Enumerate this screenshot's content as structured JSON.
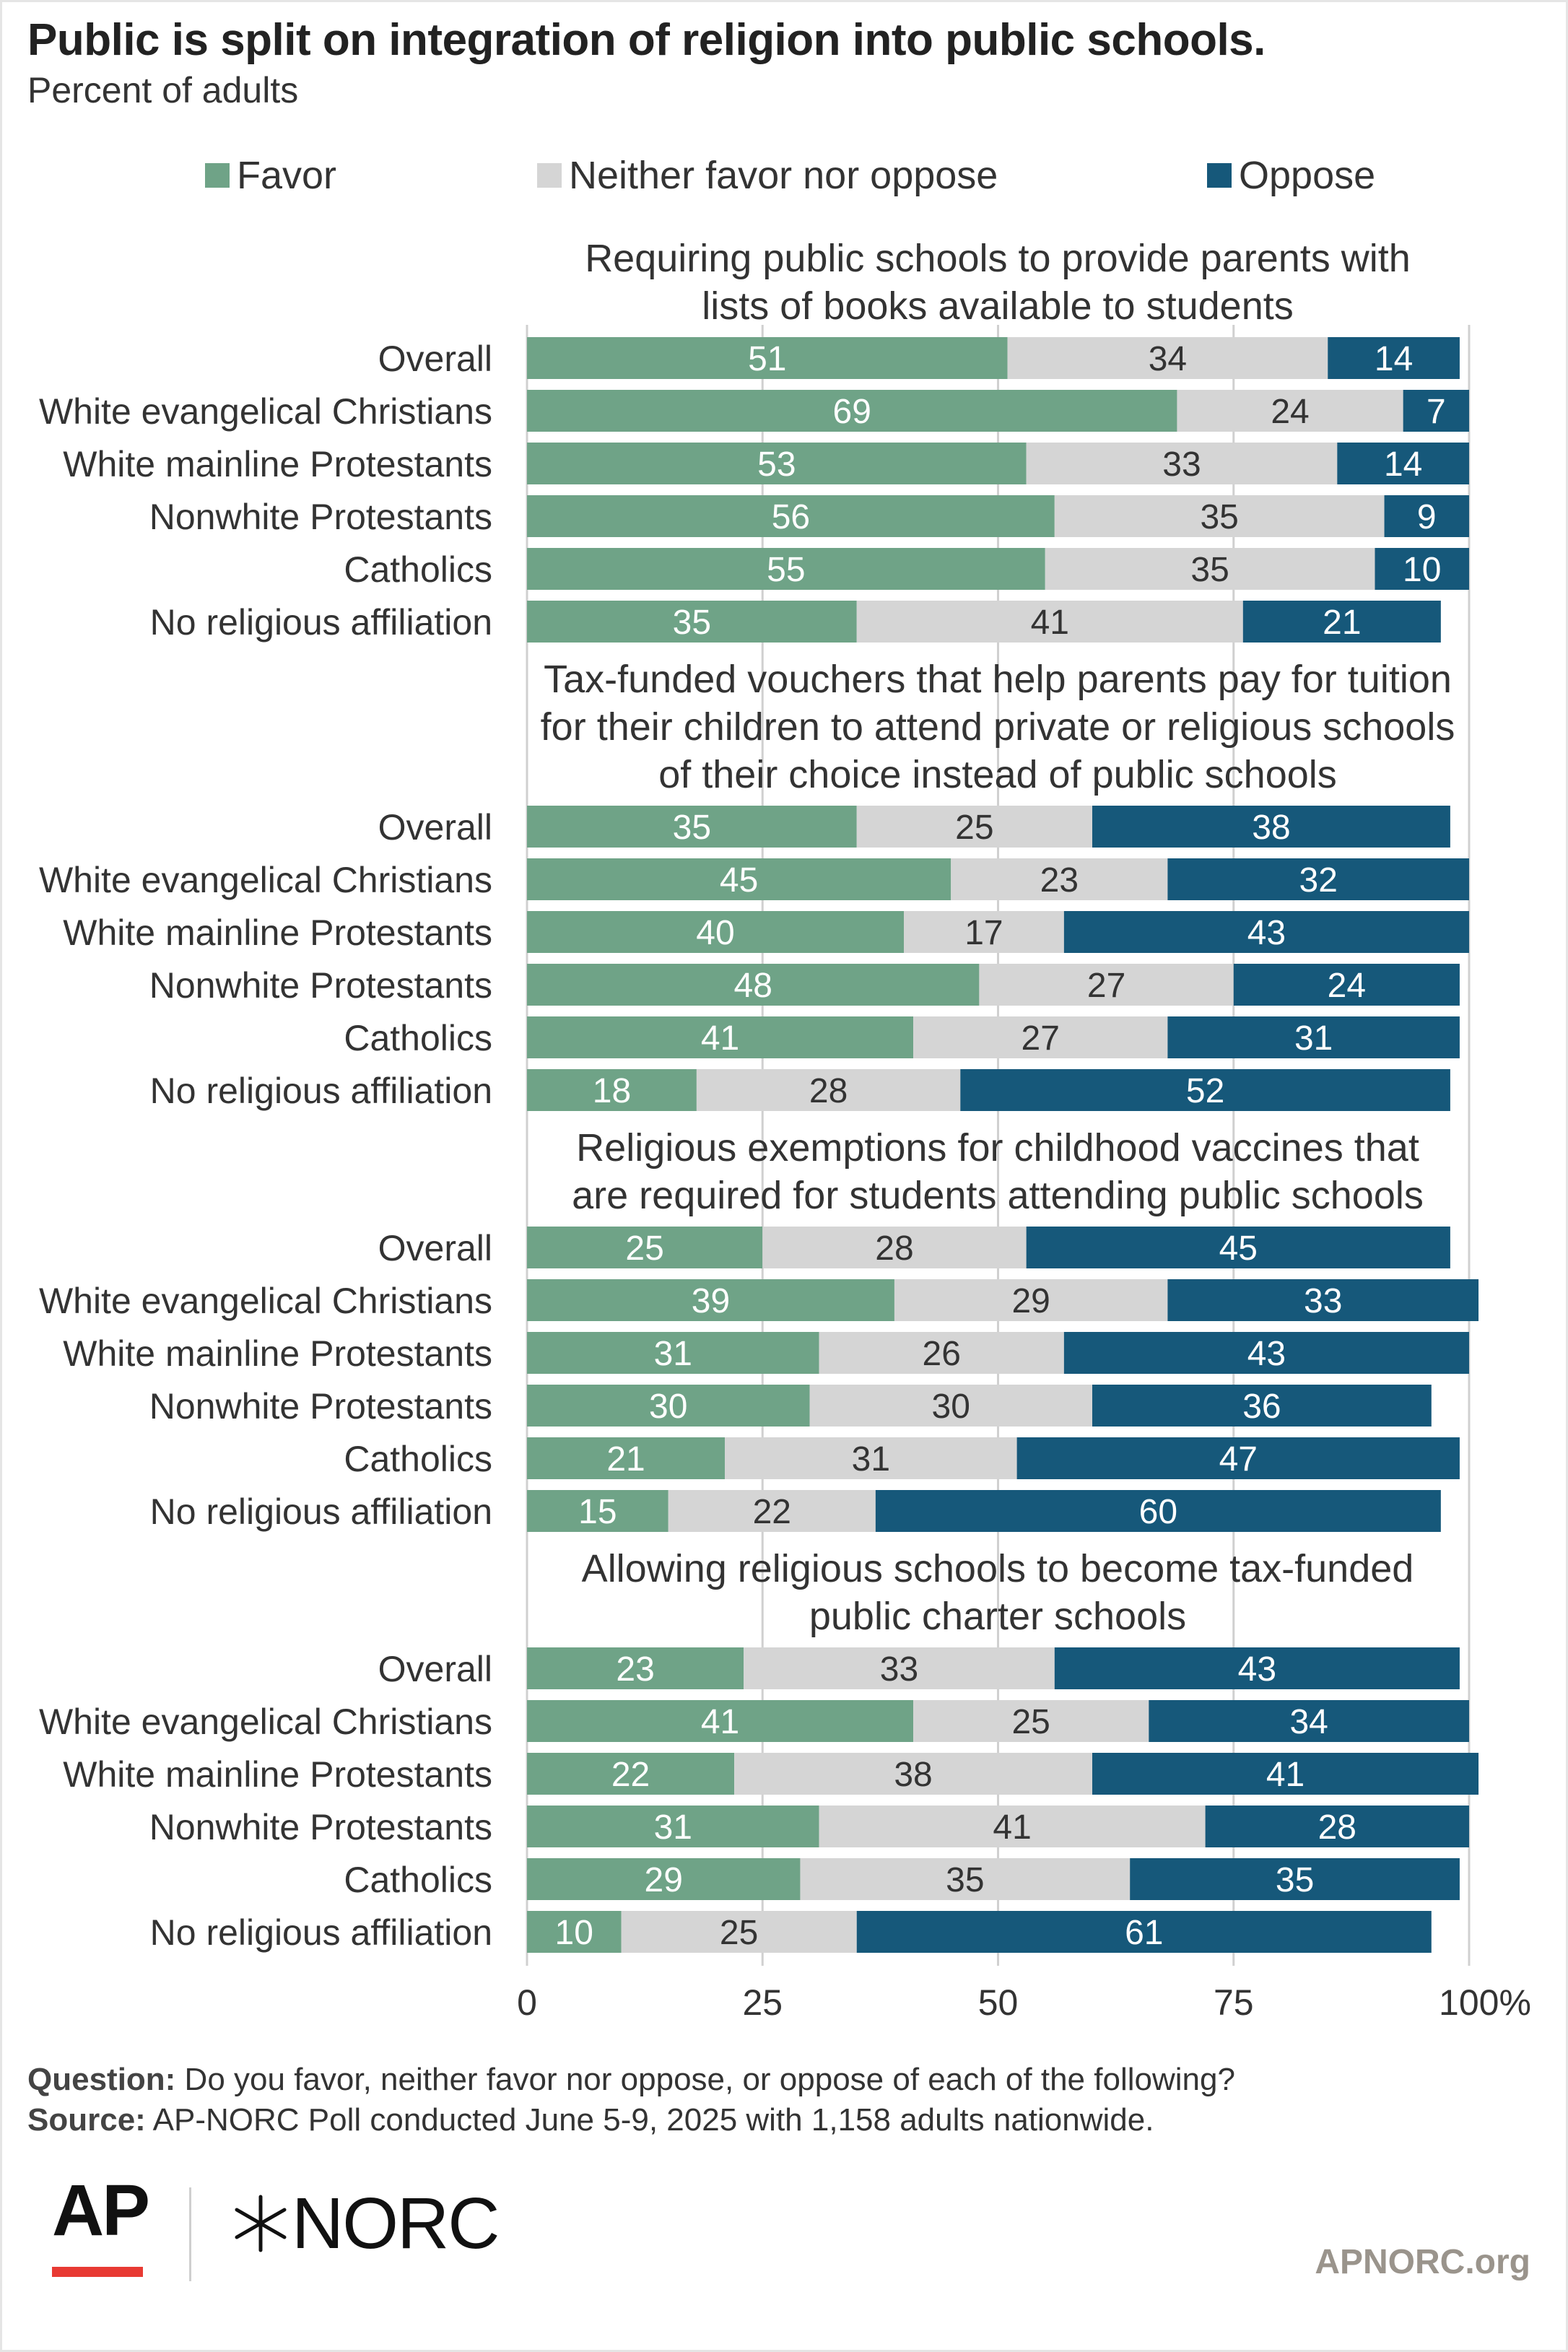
{
  "title": "Public is split on integration of religion into public schools.",
  "subtitle": "Percent of adults",
  "colors": {
    "favor": "#6fa387",
    "neither": "#d5d5d5",
    "oppose": "#16587a"
  },
  "footer": {
    "question_label": "Question:",
    "question_text": " Do you favor, neither favor nor oppose, or oppose of each of the following?",
    "source_label": "Source:",
    "source_text": " AP-NORC Poll conducted June 5-9, 2025 with 1,158 adults nationwide."
  },
  "logos": {
    "ap": "AP",
    "norc": "NORC",
    "site": "APNORC.org"
  },
  "chart_data": {
    "type": "bar",
    "orientation": "horizontal",
    "stacked": true,
    "title": "Public is split on integration of religion into public schools.",
    "subtitle": "Percent of adults",
    "series": [
      {
        "name": "Favor",
        "color": "#6fa387"
      },
      {
        "name": "Neither favor nor oppose",
        "color": "#d5d5d5"
      },
      {
        "name": "Oppose",
        "color": "#16587a"
      }
    ],
    "legend_position": "top",
    "xlim": [
      0,
      100
    ],
    "x_ticks": [
      "0",
      "25",
      "50",
      "75",
      "100%"
    ],
    "grid": true,
    "groups": [
      {
        "title_lines": [
          "Requiring public schools to provide parents with",
          "lists of books available to students"
        ],
        "rows": [
          {
            "label": "Overall",
            "values": [
              51,
              34,
              14
            ]
          },
          {
            "label": "White evangelical Christians",
            "values": [
              69,
              24,
              7
            ]
          },
          {
            "label": "White mainline Protestants",
            "values": [
              53,
              33,
              14
            ]
          },
          {
            "label": "Nonwhite Protestants",
            "values": [
              56,
              35,
              9
            ]
          },
          {
            "label": "Catholics",
            "values": [
              55,
              35,
              10
            ]
          },
          {
            "label": "No religious affiliation",
            "values": [
              35,
              41,
              21
            ]
          }
        ]
      },
      {
        "title_lines": [
          "Tax-funded vouchers that help parents pay for tuition",
          "for their children to attend private or religious schools",
          "of their choice instead of public schools"
        ],
        "rows": [
          {
            "label": "Overall",
            "values": [
              35,
              25,
              38
            ]
          },
          {
            "label": "White evangelical Christians",
            "values": [
              45,
              23,
              32
            ]
          },
          {
            "label": "White mainline Protestants",
            "values": [
              40,
              17,
              43
            ]
          },
          {
            "label": "Nonwhite Protestants",
            "values": [
              48,
              27,
              24
            ]
          },
          {
            "label": "Catholics",
            "values": [
              41,
              27,
              31
            ]
          },
          {
            "label": "No religious affiliation",
            "values": [
              18,
              28,
              52
            ]
          }
        ]
      },
      {
        "title_lines": [
          "Religious exemptions for childhood vaccines that",
          "are required for students attending public schools"
        ],
        "rows": [
          {
            "label": "Overall",
            "values": [
              25,
              28,
              45
            ]
          },
          {
            "label": "White evangelical Christians",
            "values": [
              39,
              29,
              33
            ]
          },
          {
            "label": "White mainline Protestants",
            "values": [
              31,
              26,
              43
            ]
          },
          {
            "label": "Nonwhite Protestants",
            "values": [
              30,
              30,
              36
            ]
          },
          {
            "label": "Catholics",
            "values": [
              21,
              31,
              47
            ]
          },
          {
            "label": "No religious affiliation",
            "values": [
              15,
              22,
              60
            ]
          }
        ]
      },
      {
        "title_lines": [
          "Allowing religious schools to become tax-funded",
          "public charter schools"
        ],
        "rows": [
          {
            "label": "Overall",
            "values": [
              23,
              33,
              43
            ]
          },
          {
            "label": "White evangelical Christians",
            "values": [
              41,
              25,
              34
            ]
          },
          {
            "label": "White mainline Protestants",
            "values": [
              22,
              38,
              41
            ]
          },
          {
            "label": "Nonwhite Protestants",
            "values": [
              31,
              41,
              28
            ]
          },
          {
            "label": "Catholics",
            "values": [
              29,
              35,
              35
            ]
          },
          {
            "label": "No religious affiliation",
            "values": [
              10,
              25,
              61
            ]
          }
        ]
      }
    ]
  }
}
